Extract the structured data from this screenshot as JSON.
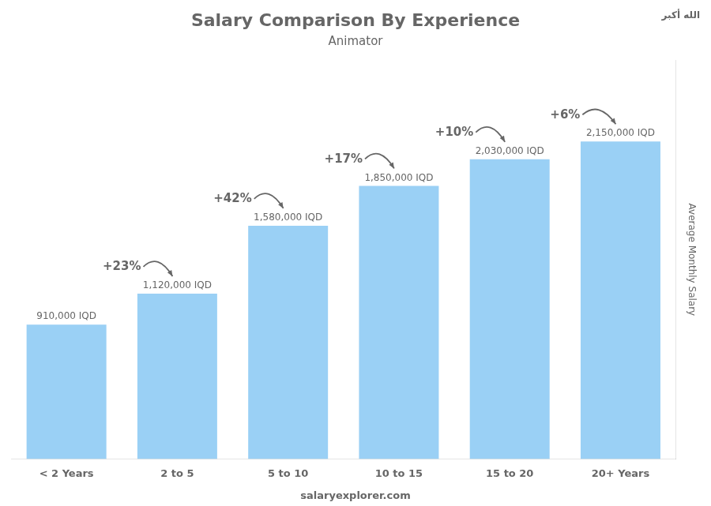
{
  "chart_data": {
    "type": "bar",
    "title": "Salary Comparison By Experience",
    "subtitle": "Animator",
    "categories": [
      "< 2 Years",
      "2 to 5",
      "5 to 10",
      "10 to 15",
      "15 to 20",
      "20+ Years"
    ],
    "values": [
      910000,
      1120000,
      1580000,
      1850000,
      2030000,
      2150000
    ],
    "value_labels": [
      "910,000 IQD",
      "1,120,000 IQD",
      "1,580,000 IQD",
      "1,850,000 IQD",
      "2,030,000 IQD",
      "2,150,000 IQD"
    ],
    "data_labels": true,
    "annotations": [
      {
        "text": "+23%",
        "from": "< 2 Years",
        "to": "2 to 5"
      },
      {
        "text": "+42%",
        "from": "2 to 5",
        "to": "5 to 10"
      },
      {
        "text": "+17%",
        "from": "5 to 10",
        "to": "10 to 15"
      },
      {
        "text": "+10%",
        "from": "10 to 15",
        "to": "15 to 20"
      },
      {
        "text": "+6%",
        "from": "15 to 20",
        "to": "20+ Years"
      }
    ],
    "ylabel": "Average Monthly Salary",
    "ylim": [
      0,
      2700000
    ],
    "tick_labels": "x",
    "grid": false,
    "footer": "salaryexplorer.com",
    "flag_text": "الله أكبر"
  }
}
